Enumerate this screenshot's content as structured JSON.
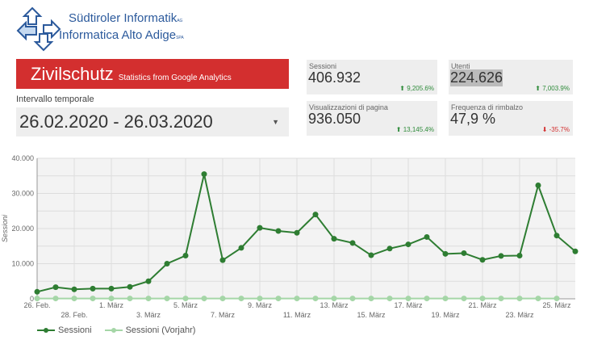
{
  "logo": {
    "line1": "Südtiroler Informatik",
    "line1_suffix": "AG",
    "line2": "Informatica Alto Adige",
    "line2_suffix": "SPA"
  },
  "banner": {
    "title": "Zivilschutz",
    "subtitle": "Statistics from Google Analytics",
    "color": "#d32f2f"
  },
  "date_range": {
    "label": "Intervallo temporale",
    "value": "26.02.2020 - 26.03.2020"
  },
  "kpis": [
    {
      "label": "Sessioni",
      "value": "406.932",
      "delta": "9,205.6%",
      "trend": "up"
    },
    {
      "label": "Utenti",
      "value": "224.626",
      "delta": "7,003.9%",
      "trend": "up"
    },
    {
      "label": "Visualizzazioni di pagina",
      "value": "936.050",
      "delta": "13,145.4%",
      "trend": "up"
    },
    {
      "label": "Frequenza di rimbalzo",
      "value": "47,9 %",
      "delta": "-35.7%",
      "trend": "down"
    }
  ],
  "chart_data": {
    "type": "line",
    "ylabel": "Sessioni",
    "ylim": [
      0,
      40000
    ],
    "yticks": [
      "0",
      "10.000",
      "20.000",
      "30.000",
      "40.000"
    ],
    "x": [
      "26. Feb.",
      "27. Feb.",
      "28. Feb.",
      "29. Feb.",
      "1. März",
      "2. März",
      "3. März",
      "4. März",
      "5. März",
      "6. März",
      "7. März",
      "8. März",
      "9. März",
      "10. März",
      "11. März",
      "12. März",
      "13. März",
      "14. März",
      "15. März",
      "16. März",
      "17. März",
      "18. März",
      "19. März",
      "20. März",
      "21. März",
      "22. März",
      "23. März",
      "24. März",
      "25. März",
      "26. März"
    ],
    "xtick_labels": [
      "26. Feb.",
      "28. Feb.",
      "1. März",
      "3. März",
      "5. März",
      "7. März",
      "9. März",
      "11. März",
      "13. März",
      "15. März",
      "17. März",
      "19. März",
      "21. März",
      "23. März",
      "25. März"
    ],
    "grid": true,
    "legend": "bottom-left",
    "series": [
      {
        "name": "Sessioni",
        "color": "#2e7d32",
        "values": [
          2000,
          3300,
          2700,
          2900,
          2900,
          3400,
          5000,
          10000,
          12300,
          35500,
          11000,
          14500,
          20200,
          19300,
          18800,
          24000,
          17100,
          15900,
          12400,
          14300,
          15500,
          17600,
          12800,
          13000,
          11100,
          12200,
          12300,
          32300,
          18000,
          13500
        ]
      },
      {
        "name": "Sessioni (Vorjahr)",
        "color": "#a5d6a7",
        "values": [
          100,
          100,
          100,
          100,
          100,
          100,
          100,
          100,
          100,
          100,
          100,
          100,
          100,
          100,
          100,
          100,
          100,
          100,
          100,
          100,
          100,
          100,
          100,
          100,
          100,
          100,
          100,
          100,
          100,
          null
        ]
      }
    ]
  }
}
